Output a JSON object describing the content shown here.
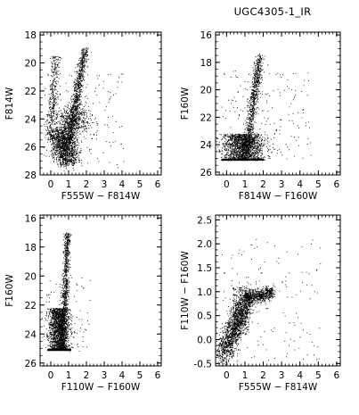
{
  "figure": {
    "title": "UGC4305-1_IR"
  },
  "chart_data": [
    {
      "type": "scatter",
      "title": "",
      "xlabel": "F555W − F814W",
      "ylabel": "F814W",
      "xlim": [
        -0.6,
        6.2
      ],
      "ylim": [
        28,
        17.8
      ],
      "y_inverted": true,
      "xticks": [
        0,
        1,
        2,
        3,
        4,
        5,
        6
      ],
      "yticks": [
        18,
        20,
        22,
        24,
        26,
        28
      ],
      "color": "#000000",
      "grid": false,
      "features": [
        {
          "kind": "red-branch",
          "x": [
            1.0,
            1.9
          ],
          "y": [
            25.8,
            18.6
          ]
        },
        {
          "kind": "blue-plume",
          "x": [
            -0.2,
            0.35
          ],
          "y": [
            25.8,
            19.5
          ]
        },
        {
          "kind": "main-clump",
          "x": [
            0.2,
            1.4
          ],
          "y": [
            23.8,
            26.8
          ]
        }
      ]
    },
    {
      "type": "scatter",
      "title": "",
      "xlabel": "F814W − F160W",
      "ylabel": "F160W",
      "xlim": [
        -0.6,
        6.2
      ],
      "ylim": [
        26.2,
        15.8
      ],
      "y_inverted": true,
      "xticks": [
        0,
        1,
        2,
        3,
        4,
        5,
        6
      ],
      "yticks": [
        16,
        18,
        20,
        22,
        24,
        26
      ],
      "color": "#000000",
      "grid": false,
      "features": [
        {
          "kind": "red-branch",
          "x": [
            1.0,
            1.8
          ],
          "y": [
            24.5,
            17.4
          ]
        },
        {
          "kind": "main-clump",
          "x": [
            -0.3,
            2.0
          ],
          "y": [
            22.5,
            25.2
          ]
        }
      ]
    },
    {
      "type": "scatter",
      "title": "",
      "xlabel": "F110W − F160W",
      "ylabel": "F160W",
      "xlim": [
        -0.6,
        6.2
      ],
      "ylim": [
        26.2,
        15.8
      ],
      "y_inverted": true,
      "xticks": [
        0,
        1,
        2,
        3,
        4,
        5,
        6
      ],
      "yticks": [
        16,
        18,
        20,
        22,
        24,
        26
      ],
      "color": "#000000",
      "grid": false,
      "features": [
        {
          "kind": "red-branch",
          "x": [
            0.65,
            0.95
          ],
          "y": [
            25.0,
            17.0
          ]
        },
        {
          "kind": "main-clump",
          "x": [
            -0.2,
            1.1
          ],
          "y": [
            22.0,
            25.2
          ]
        }
      ]
    },
    {
      "type": "scatter",
      "title": "",
      "xlabel": "F555W − F814W",
      "ylabel": "F110W − F160W",
      "xlim": [
        -0.6,
        6.2
      ],
      "ylim": [
        -0.55,
        2.6
      ],
      "y_inverted": false,
      "xticks": [
        0,
        1,
        2,
        3,
        4,
        5,
        6
      ],
      "yticks": [
        -0.5,
        0.0,
        0.5,
        1.0,
        1.5,
        2.0,
        2.5
      ],
      "color": "#000000",
      "grid": false,
      "features": [
        {
          "kind": "main-sequence",
          "x": [
            -0.2,
            1.1
          ],
          "y": [
            -0.3,
            0.85
          ]
        },
        {
          "kind": "red-plateau",
          "x": [
            1.1,
            2.5
          ],
          "y": [
            0.85,
            1.0
          ]
        }
      ]
    }
  ]
}
